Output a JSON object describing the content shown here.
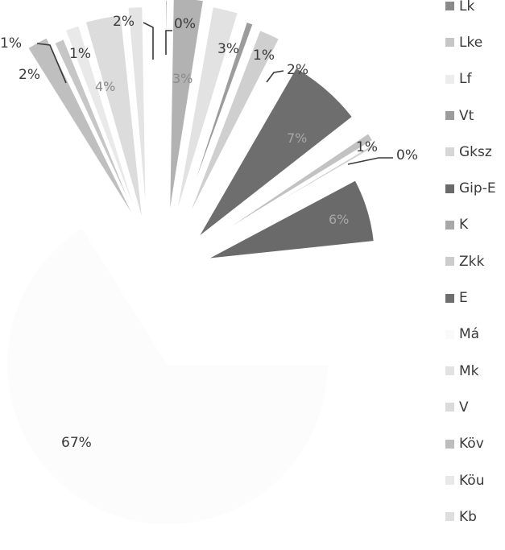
{
  "chart_data": {
    "type": "pie",
    "exploded": true,
    "legend_position": "right",
    "slices": [
      {
        "name": "Lk",
        "value": 2,
        "label": "2%",
        "color": "#bfbfbf"
      },
      {
        "name": "Lke",
        "value": 1,
        "label": "1%",
        "color": "#c6c6c6"
      },
      {
        "name": "Lf",
        "value": 1,
        "label": "1%",
        "color": "#e9e9e9"
      },
      {
        "name": "Vt",
        "value": 4,
        "label": "4%",
        "color": "#dcdcdc"
      },
      {
        "name": "Gksz",
        "value": 2,
        "label": "2%",
        "color": "#e4e4e4"
      },
      {
        "name": "Gip-E",
        "value": 0,
        "label": "0%",
        "color": "#5a5a5a"
      },
      {
        "name": "K",
        "value": 3,
        "label": "3%",
        "color": "#b2b2b2"
      },
      {
        "name": "Zkk",
        "value": 3,
        "label": "3%",
        "color": "#e2e2e2"
      },
      {
        "name": "E",
        "value": 1,
        "label": "1%",
        "color": "#9c9c9c"
      },
      {
        "name": "Má",
        "value": 2,
        "label": "2%",
        "color": "#cfcfcf"
      },
      {
        "name": "Mk",
        "value": 7,
        "label": "7%",
        "color": "#6e6e6e"
      },
      {
        "name": "V",
        "value": 1,
        "label": "1%",
        "color": "#c2c2c2"
      },
      {
        "name": "Köv",
        "value": 0,
        "label": "0%",
        "color": "#d0d0d0"
      },
      {
        "name": "Köu",
        "value": 6,
        "label": "6%",
        "color": "#6a6a6a"
      },
      {
        "name": "Kb",
        "value": 67,
        "label": "67%",
        "color": "#fcfcfc"
      }
    ],
    "legend": [
      {
        "name": "Lk",
        "color": "#8a8a8a"
      },
      {
        "name": "Lke",
        "color": "#c6c6c6"
      },
      {
        "name": "Lf",
        "color": "#ececec"
      },
      {
        "name": "Vt",
        "color": "#9c9c9c"
      },
      {
        "name": "Gksz",
        "color": "#d6d6d6"
      },
      {
        "name": "Gip-E",
        "color": "#6a6a6a"
      },
      {
        "name": "K",
        "color": "#a8a8a8"
      },
      {
        "name": "Zkk",
        "color": "#cccccc"
      },
      {
        "name": "E",
        "color": "#6e6e6e"
      },
      {
        "name": "Má",
        "color": "#fafafa"
      },
      {
        "name": "Mk",
        "color": "#e2e2e2"
      },
      {
        "name": "V",
        "color": "#dadada"
      },
      {
        "name": "Köv",
        "color": "#bdbdbd"
      },
      {
        "name": "Köu",
        "color": "#e8e8e8"
      },
      {
        "name": "Kb",
        "color": "#dedede"
      }
    ]
  }
}
